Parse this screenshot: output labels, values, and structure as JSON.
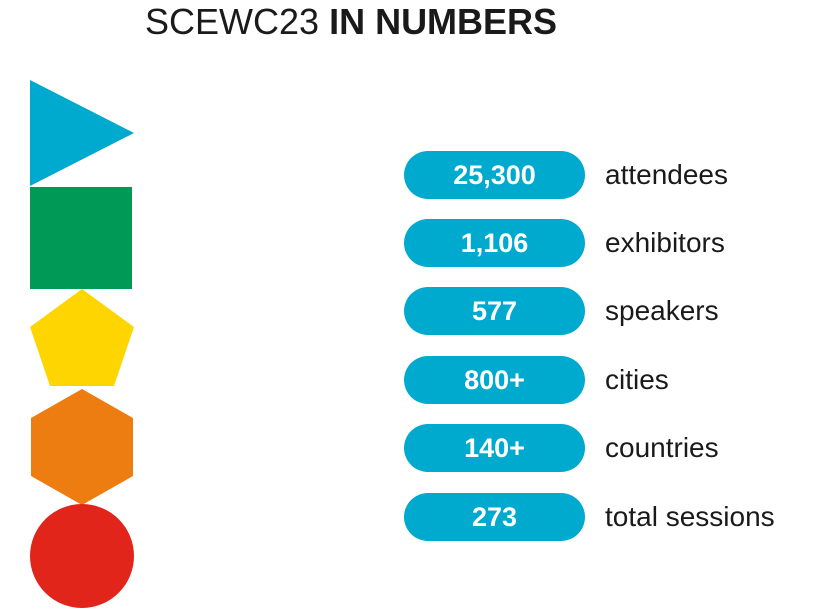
{
  "header": {
    "title_light": "SCEWC23",
    "title_bold": "IN NUMBERS"
  },
  "shapes": [
    {
      "name": "triangle-icon",
      "color": "#00a9ce"
    },
    {
      "name": "square-icon",
      "color": "#009a57"
    },
    {
      "name": "pentagon-icon",
      "color": "#ffd500"
    },
    {
      "name": "hexagon-icon",
      "color": "#ee7d11"
    },
    {
      "name": "circle-icon",
      "color": "#e1251b"
    }
  ],
  "colors": {
    "pill": "#00a9ce",
    "pill_text": "#ffffff",
    "label_text": "#1a1a1a"
  },
  "stats": [
    {
      "value": "25,300",
      "label": "attendees"
    },
    {
      "value": "1,106",
      "label": "exhibitors"
    },
    {
      "value": "577",
      "label": "speakers"
    },
    {
      "value": "800+",
      "label": "cities"
    },
    {
      "value": "140+",
      "label": "countries"
    },
    {
      "value": "273",
      "label": "total sessions"
    }
  ]
}
